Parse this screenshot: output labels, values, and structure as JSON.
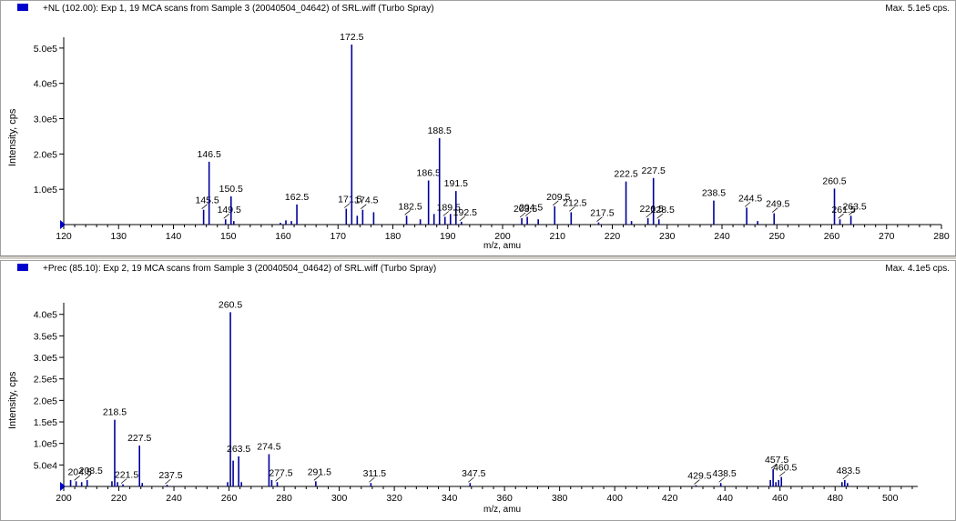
{
  "colors": {
    "trace": "#000099",
    "marker": "#0000cc",
    "axis": "#000000"
  },
  "panels": [
    {
      "title": "+NL (102.00): Exp 1, 19 MCA scans from Sample 3 (20040504_04642) of SRL.wiff (Turbo Spray)",
      "max_label": "Max. 5.1e5 cps.",
      "ylabel": "Intensity, cps",
      "xlabel": "m/z, amu"
    },
    {
      "title": "+Prec (85.10): Exp 2, 19 MCA scans from Sample 3 (20040504_04642) of SRL.wiff (Turbo Spray)",
      "max_label": "Max. 4.1e5 cps.",
      "ylabel": "Intensity, cps",
      "xlabel": "m/z, amu"
    }
  ],
  "chart_data": [
    {
      "type": "bar",
      "title": "+NL (102.00): Exp 1, 19 MCA scans from Sample 3 (20040504_04642) of SRL.wiff (Turbo Spray)",
      "xlabel": "m/z, amu",
      "ylabel": "Intensity, cps",
      "xlim": [
        120,
        280
      ],
      "ylim": [
        0,
        510000
      ],
      "xticks": [
        120,
        130,
        140,
        150,
        160,
        170,
        180,
        190,
        200,
        210,
        220,
        230,
        240,
        250,
        260,
        270,
        280
      ],
      "yticks": [
        100000,
        200000,
        300000,
        400000,
        500000
      ],
      "ytick_labels": [
        "1.0e5",
        "2.0e5",
        "3.0e5",
        "4.0e5",
        "5.0e5"
      ],
      "peaks": [
        {
          "x": 145.5,
          "y": 42000,
          "label": "145.5"
        },
        {
          "x": 146.5,
          "y": 178000,
          "label": "146.5"
        },
        {
          "x": 149.5,
          "y": 15000,
          "label": "149.5"
        },
        {
          "x": 150.5,
          "y": 80000,
          "label": "150.5"
        },
        {
          "x": 151.0,
          "y": 10000
        },
        {
          "x": 159.5,
          "y": 5000
        },
        {
          "x": 160.5,
          "y": 12000
        },
        {
          "x": 161.5,
          "y": 10000
        },
        {
          "x": 162.5,
          "y": 57000,
          "label": "162.5"
        },
        {
          "x": 171.5,
          "y": 45000,
          "label": "171.5"
        },
        {
          "x": 172.5,
          "y": 510000,
          "label": "172.5"
        },
        {
          "x": 173.5,
          "y": 25000
        },
        {
          "x": 174.5,
          "y": 42000,
          "label": "174.5"
        },
        {
          "x": 176.5,
          "y": 35000
        },
        {
          "x": 182.5,
          "y": 25000,
          "label": "182.5"
        },
        {
          "x": 185.0,
          "y": 15000
        },
        {
          "x": 186.5,
          "y": 125000,
          "label": "186.5"
        },
        {
          "x": 187.5,
          "y": 30000
        },
        {
          "x": 188.5,
          "y": 245000,
          "label": "188.5"
        },
        {
          "x": 189.5,
          "y": 22000,
          "label": "189.5"
        },
        {
          "x": 190.5,
          "y": 30000
        },
        {
          "x": 191.5,
          "y": 95000,
          "label": "191.5"
        },
        {
          "x": 192.5,
          "y": 8000,
          "label": "192.5"
        },
        {
          "x": 203.5,
          "y": 18000,
          "label": "203.5"
        },
        {
          "x": 204.5,
          "y": 22000,
          "label": "204.5"
        },
        {
          "x": 206.5,
          "y": 15000
        },
        {
          "x": 209.5,
          "y": 52000,
          "label": "209.5"
        },
        {
          "x": 212.5,
          "y": 35000,
          "label": "212.5"
        },
        {
          "x": 217.5,
          "y": 6000,
          "label": "217.5"
        },
        {
          "x": 222.5,
          "y": 122000,
          "label": "222.5"
        },
        {
          "x": 223.5,
          "y": 10000
        },
        {
          "x": 226.5,
          "y": 18000,
          "label": "226.5"
        },
        {
          "x": 227.5,
          "y": 132000,
          "label": "227.5"
        },
        {
          "x": 228.5,
          "y": 15000,
          "label": "228.5"
        },
        {
          "x": 238.5,
          "y": 68000,
          "label": "238.5"
        },
        {
          "x": 244.5,
          "y": 48000,
          "label": "244.5"
        },
        {
          "x": 246.5,
          "y": 10000
        },
        {
          "x": 249.5,
          "y": 32000,
          "label": "249.5"
        },
        {
          "x": 260.5,
          "y": 102000,
          "label": "260.5"
        },
        {
          "x": 261.5,
          "y": 15000,
          "label": "261.5"
        },
        {
          "x": 263.5,
          "y": 25000,
          "label": "263.5"
        }
      ]
    },
    {
      "type": "bar",
      "title": "+Prec (85.10): Exp 2, 19 MCA scans from Sample 3 (20040504_04642) of SRL.wiff (Turbo Spray)",
      "xlabel": "m/z, amu",
      "ylabel": "Intensity, cps",
      "xlim": [
        200,
        510
      ],
      "ylim": [
        0,
        410000
      ],
      "xticks": [
        200,
        220,
        240,
        260,
        280,
        300,
        320,
        340,
        360,
        380,
        400,
        420,
        440,
        460,
        480,
        500
      ],
      "yticks": [
        50000,
        100000,
        150000,
        200000,
        250000,
        300000,
        350000,
        400000
      ],
      "ytick_labels": [
        "5.0e4",
        "1.0e5",
        "1.5e5",
        "2.0e5",
        "2.5e5",
        "3.0e5",
        "3.5e5",
        "4.0e5"
      ],
      "peaks": [
        {
          "x": 202.5,
          "y": 15000
        },
        {
          "x": 204.5,
          "y": 12000,
          "label": "204.5"
        },
        {
          "x": 206.5,
          "y": 10000
        },
        {
          "x": 208.5,
          "y": 15000,
          "label": "208.5"
        },
        {
          "x": 217.5,
          "y": 12000
        },
        {
          "x": 218.5,
          "y": 155000,
          "label": "218.5"
        },
        {
          "x": 219.5,
          "y": 10000
        },
        {
          "x": 221.5,
          "y": 5000,
          "label": "221.5"
        },
        {
          "x": 227.5,
          "y": 95000,
          "label": "227.5"
        },
        {
          "x": 228.5,
          "y": 8000
        },
        {
          "x": 237.5,
          "y": 4000,
          "label": "237.5"
        },
        {
          "x": 259.5,
          "y": 10000
        },
        {
          "x": 260.5,
          "y": 405000,
          "label": "260.5"
        },
        {
          "x": 261.5,
          "y": 60000
        },
        {
          "x": 263.5,
          "y": 70000,
          "label": "263.5"
        },
        {
          "x": 264.5,
          "y": 10000
        },
        {
          "x": 274.5,
          "y": 75000,
          "label": "274.5"
        },
        {
          "x": 275.5,
          "y": 15000
        },
        {
          "x": 277.5,
          "y": 10000,
          "label": "277.5"
        },
        {
          "x": 291.5,
          "y": 12000,
          "label": "291.5"
        },
        {
          "x": 311.5,
          "y": 8000,
          "label": "311.5"
        },
        {
          "x": 347.5,
          "y": 8000,
          "label": "347.5"
        },
        {
          "x": 429.5,
          "y": 3000,
          "label": "429.5"
        },
        {
          "x": 438.5,
          "y": 8000,
          "label": "438.5"
        },
        {
          "x": 456.5,
          "y": 15000
        },
        {
          "x": 457.5,
          "y": 40000,
          "label": "457.5"
        },
        {
          "x": 458.5,
          "y": 10000
        },
        {
          "x": 459.5,
          "y": 15000
        },
        {
          "x": 460.5,
          "y": 22000,
          "label": "460.5"
        },
        {
          "x": 482.5,
          "y": 10000
        },
        {
          "x": 483.5,
          "y": 15000,
          "label": "483.5"
        },
        {
          "x": 484.5,
          "y": 8000
        }
      ]
    }
  ]
}
